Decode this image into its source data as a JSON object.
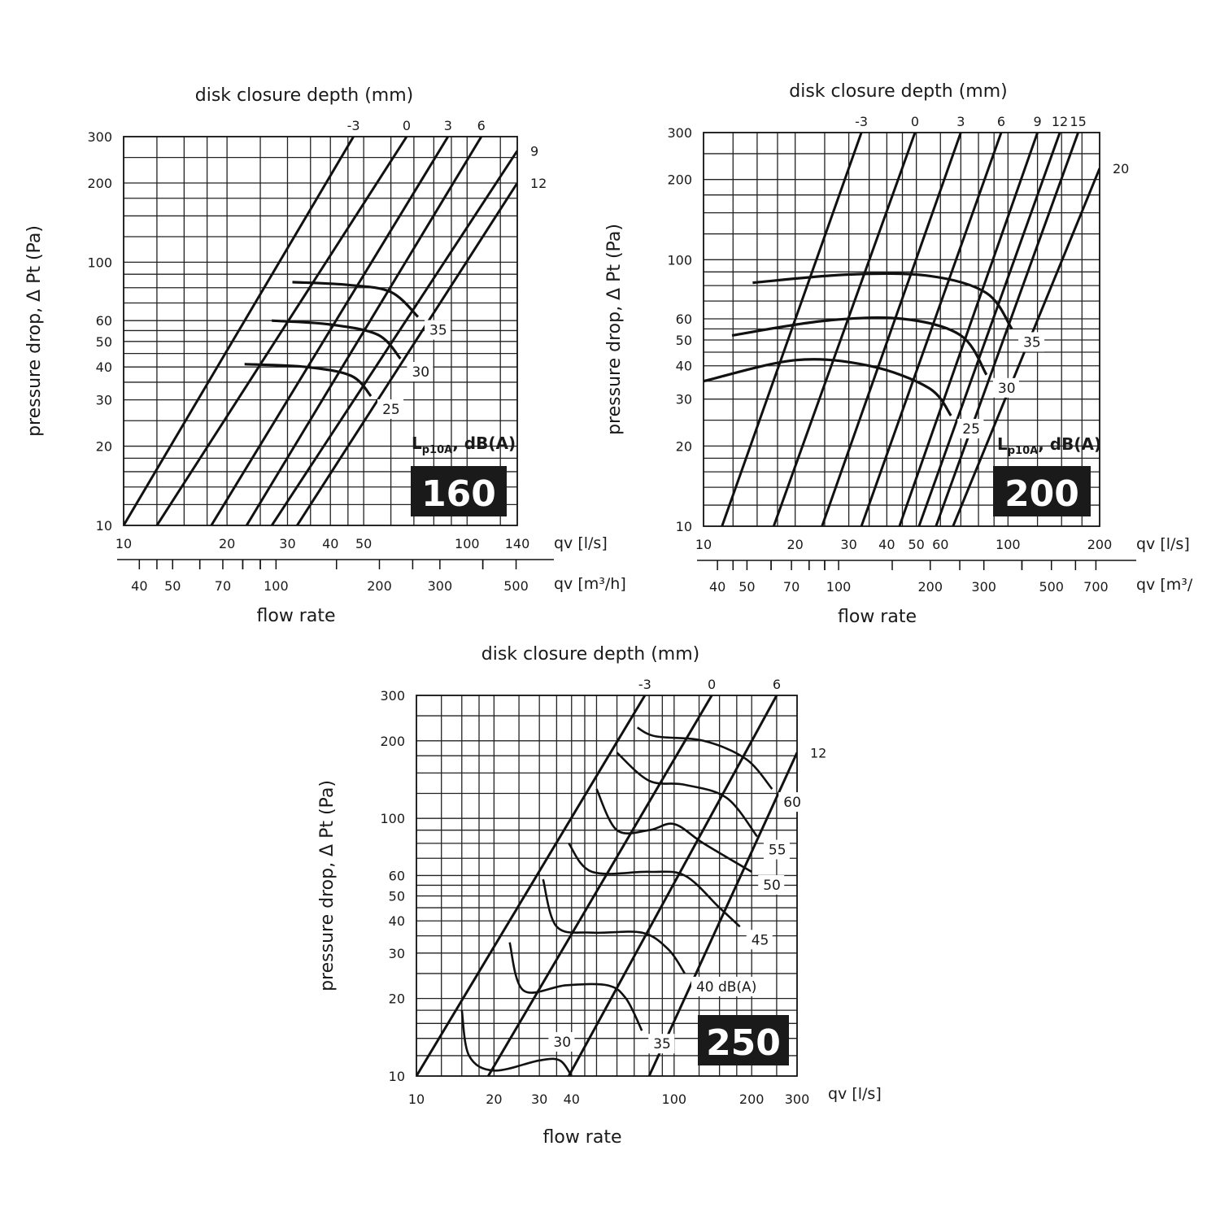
{
  "chart_data": [
    {
      "type": "line",
      "size_badge": "160",
      "title": "disk closure depth (mm)",
      "ylabel": "pressure drop, Δ Pt (Pa)",
      "xlabel": "flow rate",
      "x_unit_ls": "qv [l/s]",
      "x_unit_m3h": "qv [m³/h]",
      "noise_label": "Lp10A, dB(A)",
      "x_scale": "log",
      "y_scale": "log",
      "xlim": [
        10,
        140
      ],
      "ylim": [
        10,
        300
      ],
      "grid": true,
      "y_ticks": [
        10,
        20,
        30,
        40,
        50,
        60,
        100,
        200,
        300
      ],
      "x_ticks_ls": [
        10,
        20,
        30,
        40,
        50,
        100,
        140
      ],
      "x_ticks_m3h": [
        40,
        50,
        70,
        100,
        200,
        300,
        500
      ],
      "series": [
        {
          "name": "-3",
          "x": [
            10,
            46.7
          ],
          "y": [
            10,
            300
          ]
        },
        {
          "name": "0",
          "x": [
            12.5,
            66.7
          ],
          "y": [
            10,
            300
          ]
        },
        {
          "name": "3",
          "x": [
            18,
            88
          ],
          "y": [
            10,
            300
          ]
        },
        {
          "name": "6",
          "x": [
            22.8,
            110
          ],
          "y": [
            10,
            300
          ]
        },
        {
          "name": "9",
          "x": [
            27,
            140
          ],
          "y": [
            10,
            265
          ]
        },
        {
          "name": "12",
          "x": [
            32,
            140
          ],
          "y": [
            10,
            200
          ]
        }
      ],
      "noise_curves": [
        {
          "name": "35",
          "x": [
            31,
            45,
            60,
            72
          ],
          "y": [
            84,
            82,
            77,
            62
          ]
        },
        {
          "name": "30",
          "x": [
            27,
            40,
            55,
            64
          ],
          "y": [
            60,
            58,
            53,
            43
          ]
        },
        {
          "name": "25",
          "x": [
            22.5,
            34,
            46,
            52.5
          ],
          "y": [
            41,
            40,
            37,
            31
          ]
        }
      ]
    },
    {
      "type": "line",
      "size_badge": "200",
      "title": "disk closure depth (mm)",
      "ylabel": "pressure drop, Δ Pt (Pa)",
      "xlabel": "flow rate",
      "x_unit_ls": "qv [l/s]",
      "x_unit_m3h": "qv [m³/",
      "noise_label": "Lp10A, dB(A)",
      "x_scale": "log",
      "y_scale": "log",
      "xlim": [
        10,
        200
      ],
      "ylim": [
        10,
        300
      ],
      "grid": true,
      "y_ticks": [
        10,
        20,
        30,
        40,
        50,
        60,
        100,
        200,
        300
      ],
      "x_ticks_ls": [
        10,
        20,
        30,
        40,
        50,
        60,
        100,
        200
      ],
      "x_ticks_m3h": [
        40,
        50,
        70,
        100,
        200,
        300,
        500,
        700
      ],
      "series": [
        {
          "name": "-3",
          "x": [
            11.5,
            33
          ],
          "y": [
            10,
            300
          ]
        },
        {
          "name": "0",
          "x": [
            17,
            49.5
          ],
          "y": [
            10,
            300
          ]
        },
        {
          "name": "3",
          "x": [
            24.5,
            70
          ],
          "y": [
            10,
            300
          ]
        },
        {
          "name": "6",
          "x": [
            33,
            95
          ],
          "y": [
            10,
            300
          ]
        },
        {
          "name": "9",
          "x": [
            44,
            125
          ],
          "y": [
            10,
            300
          ]
        },
        {
          "name": "12",
          "x": [
            51,
            148
          ],
          "y": [
            10,
            300
          ]
        },
        {
          "name": "15",
          "x": [
            58,
            170
          ],
          "y": [
            10,
            300
          ]
        },
        {
          "name": "20",
          "x": [
            66,
            200
          ],
          "y": [
            10,
            220
          ]
        }
      ],
      "noise_curves": [
        {
          "name": "35",
          "x": [
            14.5,
            30,
            55,
            85,
            103
          ],
          "y": [
            82,
            88,
            87,
            75,
            55
          ]
        },
        {
          "name": "30",
          "x": [
            12.4,
            25,
            45,
            70,
            85
          ],
          "y": [
            52,
            59,
            60,
            52,
            37
          ]
        },
        {
          "name": "25",
          "x": [
            10,
            20,
            35,
            55,
            65
          ],
          "y": [
            35,
            42,
            40,
            33,
            26
          ]
        }
      ]
    },
    {
      "type": "line",
      "size_badge": "250",
      "title": "disk closure depth (mm)",
      "ylabel": "pressure drop, Δ Pt (Pa)",
      "xlabel": "flow rate",
      "x_unit_ls": "qv [l/s]",
      "x_scale": "log",
      "y_scale": "log",
      "xlim": [
        10,
        300
      ],
      "ylim": [
        10,
        300
      ],
      "grid": true,
      "y_ticks": [
        10,
        20,
        30,
        40,
        50,
        60,
        100,
        200,
        300
      ],
      "x_ticks_ls": [
        10,
        20,
        30,
        40,
        100,
        200,
        300
      ],
      "series": [
        {
          "name": "-3",
          "x": [
            10,
            77
          ],
          "y": [
            10,
            300
          ]
        },
        {
          "name": "0",
          "x": [
            19,
            140
          ],
          "y": [
            10,
            300
          ]
        },
        {
          "name": "6",
          "x": [
            39,
            250
          ],
          "y": [
            10,
            300
          ]
        },
        {
          "name": "12",
          "x": [
            80,
            300
          ],
          "y": [
            10,
            180
          ]
        }
      ],
      "noise_curves": [
        {
          "name": "30",
          "x": [
            15,
            16,
            20,
            30,
            36,
            40
          ],
          "y": [
            18,
            12,
            10.5,
            11.5,
            11.5,
            10
          ]
        },
        {
          "name": "35",
          "x": [
            23,
            26,
            38,
            55,
            65,
            75
          ],
          "y": [
            33,
            21.5,
            22.5,
            22.5,
            20,
            15
          ]
        },
        {
          "name": "40 dB(A)",
          "x": [
            31,
            35,
            48,
            75,
            95,
            110
          ],
          "y": [
            58,
            38,
            36,
            36,
            31,
            25
          ]
        },
        {
          "name": "45",
          "x": [
            39,
            48,
            80,
            110,
            150,
            180
          ],
          "y": [
            80,
            62,
            62,
            60,
            45,
            38
          ]
        },
        {
          "name": "50",
          "x": [
            50,
            60,
            80,
            100,
            130,
            200
          ],
          "y": [
            130,
            90,
            90,
            95,
            80,
            62
          ]
        },
        {
          "name": "55",
          "x": [
            60,
            80,
            110,
            160,
            210
          ],
          "y": [
            180,
            140,
            135,
            120,
            85
          ]
        },
        {
          "name": "60",
          "x": [
            72,
            85,
            130,
            190,
            240
          ],
          "y": [
            225,
            208,
            200,
            170,
            130
          ]
        }
      ]
    }
  ]
}
